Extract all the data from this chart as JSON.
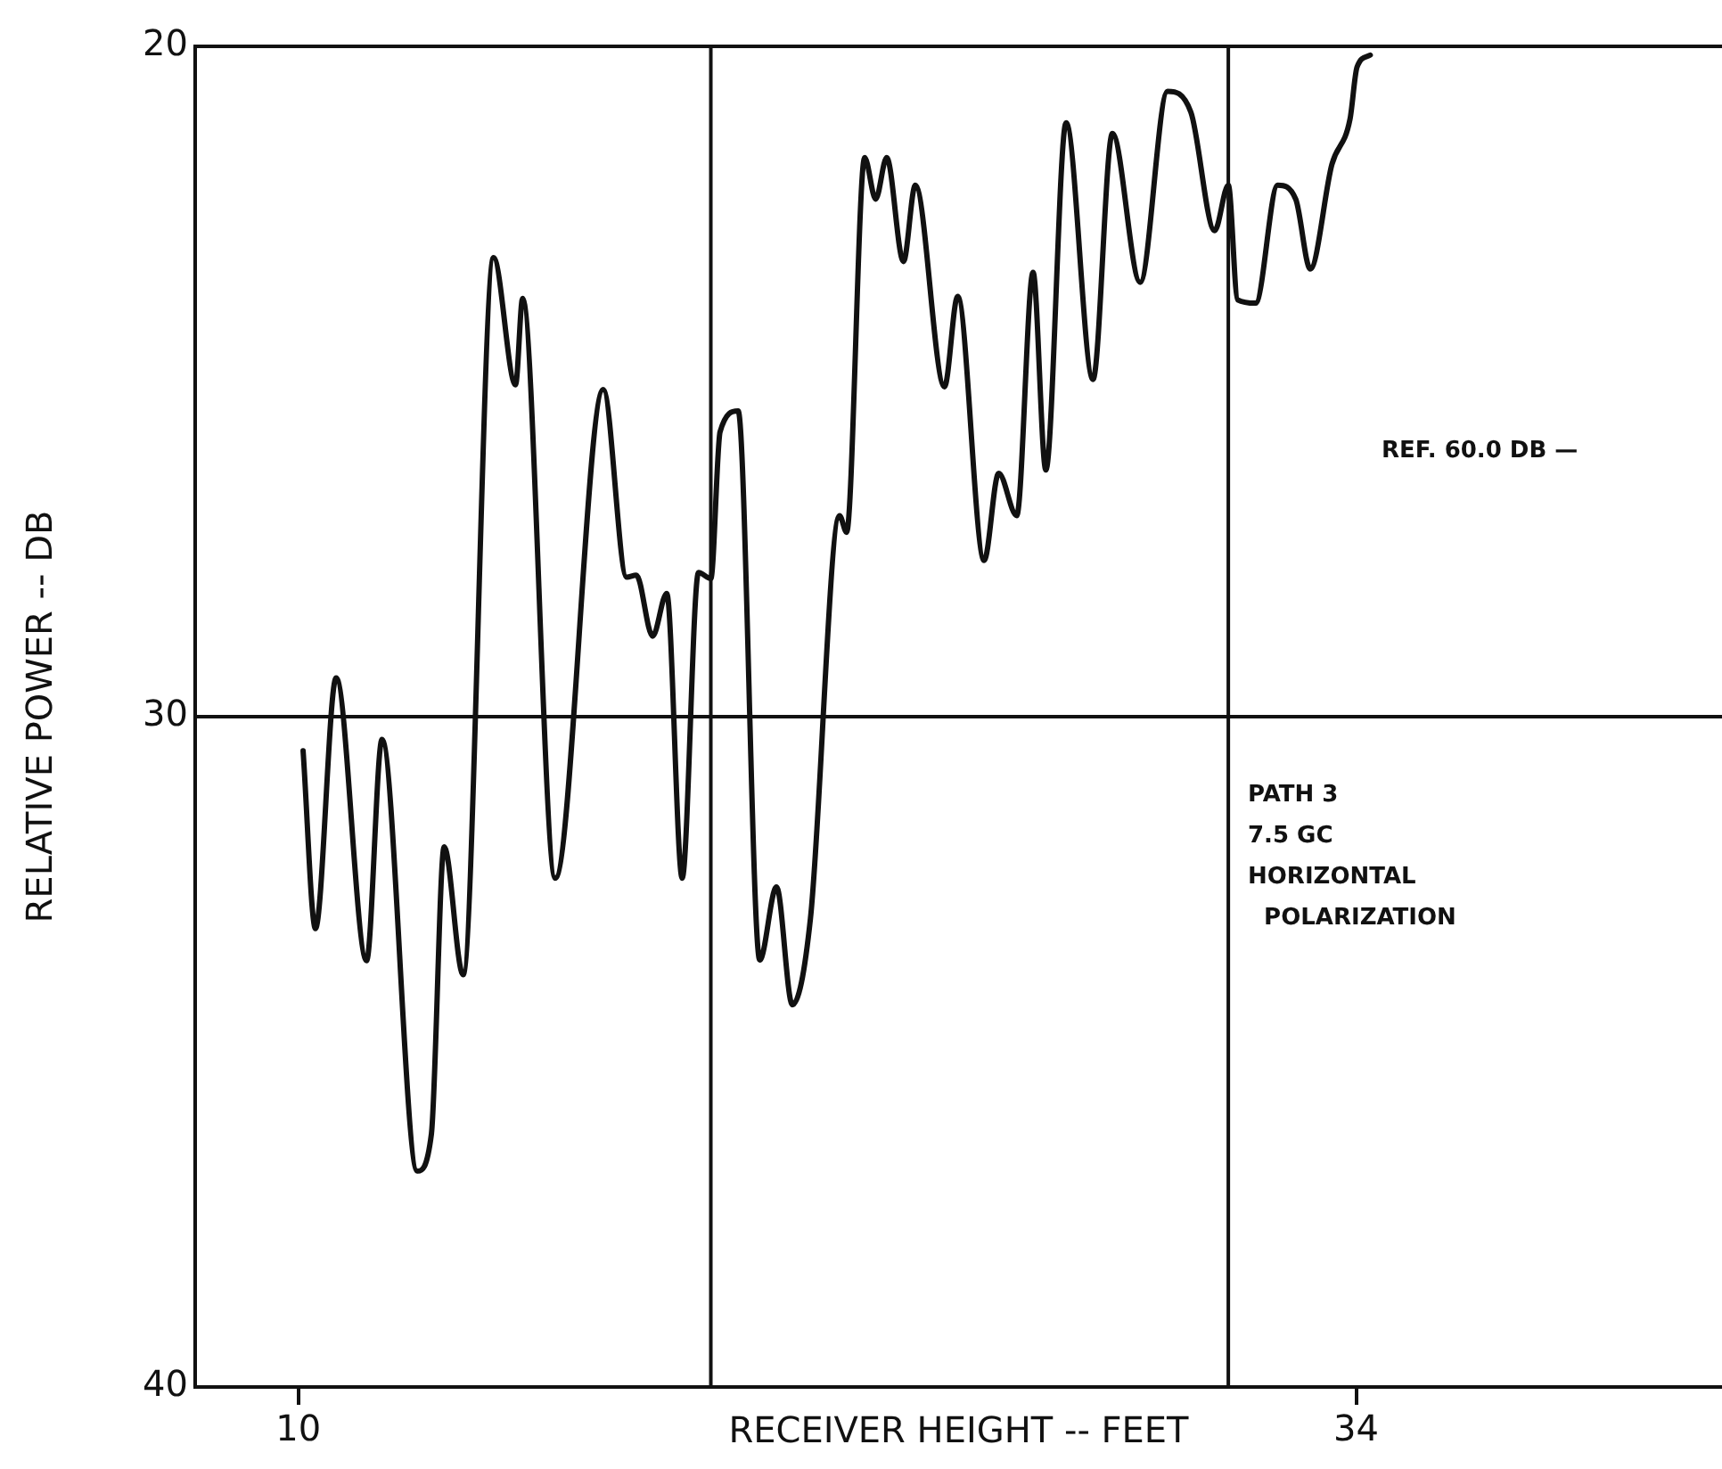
{
  "chart_data": {
    "type": "line",
    "xlabel": "RECEIVER HEIGHT -- FEET",
    "ylabel": "RELATIVE POWER -- DB",
    "xlim": [
      7.66,
      42.3
    ],
    "xticks": [
      10,
      34
    ],
    "ylim": [
      40,
      20
    ],
    "yticks": [
      20,
      30,
      40
    ],
    "grid": "y",
    "legend": false,
    "marker": "none",
    "line_style": "solid",
    "series": [
      {
        "color": "#111111",
        "x": [
          10.11,
          10.39,
          10.86,
          11.55,
          11.9,
          12.7,
          13.02,
          13.31,
          13.74,
          14.43,
          14.93,
          15.09,
          15.83,
          16.92,
          17.45,
          17.67,
          18.04,
          18.36,
          18.71,
          19.08,
          19.36,
          19.57,
          19.98,
          20.47,
          20.85,
          21.21,
          21.62,
          22.28,
          22.44,
          22.85,
          23.1,
          23.35,
          23.73,
          24.0,
          24.66,
          24.96,
          25.56,
          25.89,
          26.3,
          26.67,
          26.96,
          27.42,
          28.03,
          28.47,
          29.1,
          29.72,
          30.25,
          30.79,
          31.1,
          31.31,
          31.72,
          32.22,
          32.63,
          32.96,
          33.45,
          33.86,
          34.02,
          34.32
        ],
        "values": [
          30.51,
          33.16,
          29.42,
          33.64,
          30.34,
          36.78,
          36.23,
          31.94,
          33.85,
          23.15,
          25.05,
          23.76,
          32.41,
          25.12,
          27.92,
          27.89,
          28.8,
          28.16,
          32.41,
          27.85,
          27.94,
          25.75,
          25.44,
          33.63,
          32.54,
          34.3,
          33.01,
          27.0,
          27.25,
          21.66,
          22.28,
          21.66,
          23.21,
          22.07,
          25.08,
          23.73,
          27.67,
          26.37,
          27.0,
          23.37,
          26.32,
          21.14,
          24.97,
          21.3,
          23.52,
          20.67,
          20.98,
          22.75,
          22.07,
          23.78,
          23.83,
          22.07,
          22.28,
          23.32,
          21.76,
          21.09,
          20.31,
          20.13
        ]
      }
    ],
    "ref_lines": [
      {
        "axis": "x",
        "value": 19.36,
        "color": "#111111"
      },
      {
        "axis": "x",
        "value": 31.1,
        "color": "#111111"
      }
    ],
    "annotations": [
      "REF. 60.0 DB —",
      "PATH 3\n7.5 GC\nHORIZONTAL\n  POLARIZATION"
    ]
  }
}
